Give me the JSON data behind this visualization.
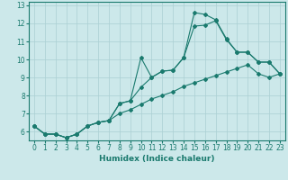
{
  "xlabel": "Humidex (Indice chaleur)",
  "bg_color": "#cce8ea",
  "grid_color": "#aacfd2",
  "line_color": "#1a7a6e",
  "xlim": [
    -0.5,
    23.5
  ],
  "ylim": [
    5.5,
    13.2
  ],
  "yticks": [
    6,
    7,
    8,
    9,
    10,
    11,
    12,
    13
  ],
  "xticks": [
    0,
    1,
    2,
    3,
    4,
    5,
    6,
    7,
    8,
    9,
    10,
    11,
    12,
    13,
    14,
    15,
    16,
    17,
    18,
    19,
    20,
    21,
    22,
    23
  ],
  "line1_x": [
    0,
    1,
    2,
    3,
    4,
    5,
    6,
    7,
    8,
    9,
    10,
    11,
    12,
    13,
    14,
    15,
    16,
    17,
    18,
    19,
    20,
    21,
    22,
    23
  ],
  "line1_y": [
    6.3,
    5.85,
    5.85,
    5.65,
    5.85,
    6.3,
    6.5,
    6.6,
    7.0,
    7.2,
    7.5,
    7.8,
    8.0,
    8.2,
    8.5,
    8.7,
    8.9,
    9.1,
    9.3,
    9.5,
    9.7,
    9.2,
    9.0,
    9.2
  ],
  "line2_x": [
    0,
    1,
    2,
    3,
    4,
    5,
    6,
    7,
    8,
    9,
    10,
    11,
    12,
    13,
    14,
    15,
    16,
    17,
    18,
    19,
    20,
    21,
    22,
    23
  ],
  "line2_y": [
    6.3,
    5.85,
    5.85,
    5.65,
    5.85,
    6.3,
    6.5,
    6.6,
    7.55,
    7.7,
    10.1,
    9.0,
    9.35,
    9.4,
    10.1,
    11.85,
    11.9,
    12.15,
    11.1,
    10.4,
    10.4,
    9.85,
    9.85,
    9.2
  ],
  "line3_x": [
    0,
    1,
    2,
    3,
    4,
    5,
    6,
    7,
    8,
    9,
    10,
    11,
    12,
    13,
    14,
    15,
    16,
    17,
    18,
    19,
    20,
    21,
    22,
    23
  ],
  "line3_y": [
    6.3,
    5.85,
    5.85,
    5.65,
    5.85,
    6.3,
    6.5,
    6.6,
    7.55,
    7.7,
    8.45,
    9.0,
    9.35,
    9.4,
    10.1,
    12.6,
    12.5,
    12.2,
    11.15,
    10.4,
    10.4,
    9.85,
    9.85,
    9.2
  ],
  "marker": "D",
  "markersize": 2.0,
  "linewidth": 0.8,
  "xlabel_fontsize": 6.5,
  "tick_fontsize": 5.5
}
